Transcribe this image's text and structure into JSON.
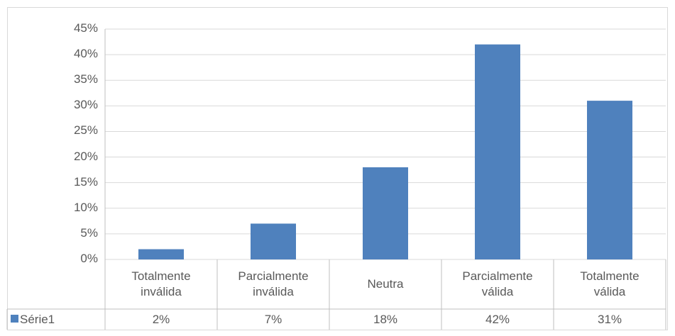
{
  "chart_data": {
    "type": "bar",
    "categories": [
      "Totalmente inválida",
      "Parcialmente inválida",
      "Neutra",
      "Parcialmente válida",
      "Totalmente válida"
    ],
    "series": [
      {
        "name": "Série1",
        "color": "#4f81bd",
        "values": [
          2,
          7,
          18,
          42,
          31
        ],
        "value_labels": [
          "2%",
          "7%",
          "18%",
          "42%",
          "31%"
        ]
      }
    ],
    "ylim": [
      0,
      45
    ],
    "yticks": [
      {
        "value": 0,
        "label": "0%"
      },
      {
        "value": 5,
        "label": "5%"
      },
      {
        "value": 10,
        "label": "10%"
      },
      {
        "value": 15,
        "label": "15%"
      },
      {
        "value": 20,
        "label": "20%"
      },
      {
        "value": 25,
        "label": "25%"
      },
      {
        "value": 30,
        "label": "30%"
      },
      {
        "value": 35,
        "label": "35%"
      },
      {
        "value": 40,
        "label": "40%"
      },
      {
        "value": 45,
        "label": "45%"
      }
    ],
    "grid": true
  }
}
